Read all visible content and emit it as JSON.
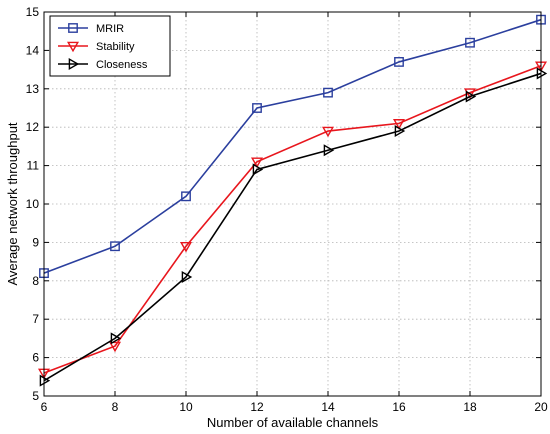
{
  "chart_data": {
    "type": "line",
    "title": "",
    "xlabel": "Number of available channels",
    "ylabel": "Average network throughput",
    "x": [
      6,
      8,
      10,
      12,
      14,
      16,
      18,
      20
    ],
    "xlim": [
      6,
      20
    ],
    "ylim": [
      5,
      15
    ],
    "xticks": [
      "6",
      "8",
      "10",
      "12",
      "14",
      "16",
      "18",
      "20"
    ],
    "yticks": [
      "5",
      "6",
      "7",
      "8",
      "9",
      "10",
      "11",
      "12",
      "13",
      "14",
      "15"
    ],
    "grid": true,
    "legend_position": "top-left",
    "series": [
      {
        "name": "MRIR",
        "color": "#2b3f9e",
        "marker": "square",
        "values": [
          8.2,
          8.9,
          10.2,
          12.5,
          12.9,
          13.7,
          14.2,
          14.8
        ]
      },
      {
        "name": "Stability",
        "color": "#e8161d",
        "marker": "triangle-down",
        "values": [
          5.6,
          6.3,
          8.9,
          11.1,
          11.9,
          12.1,
          12.9,
          13.6
        ]
      },
      {
        "name": "Closeness",
        "color": "#000000",
        "marker": "triangle-right",
        "values": [
          5.4,
          6.5,
          8.1,
          10.9,
          11.4,
          11.9,
          12.8,
          13.4
        ]
      }
    ]
  }
}
